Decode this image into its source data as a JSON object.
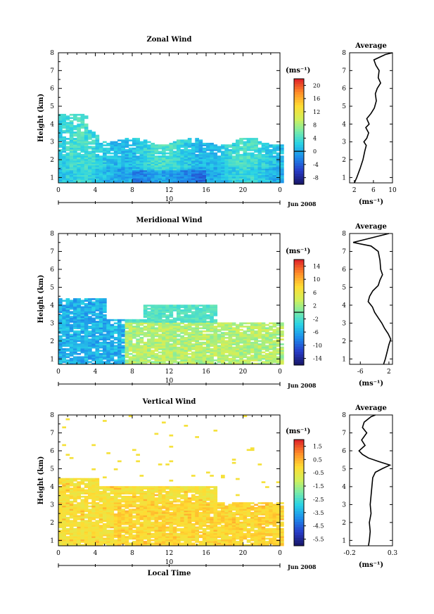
{
  "figure": {
    "colorbar_unit": "(ms⁻¹)",
    "avg_xlabel": "(ms⁻¹)",
    "date_label": "Jun 2008",
    "bottom_xlabel": "Local Time"
  },
  "chart_data": [
    {
      "type": "heatmap",
      "title": "Zonal Wind",
      "ylabel": "Height (km)",
      "xlabel": "",
      "x_ticks": [
        "0",
        "4",
        "8",
        "12",
        "16",
        "20",
        "0"
      ],
      "day_label": "10",
      "xlim": [
        0,
        24
      ],
      "y_ticks": [
        "1",
        "2",
        "3",
        "4",
        "5",
        "6",
        "7",
        "8"
      ],
      "ylim": [
        0.7,
        8
      ],
      "colorbar": {
        "ticks": [
          "20",
          "16",
          "12",
          "8",
          "4",
          "0",
          "-4",
          "-8"
        ],
        "min": -10,
        "max": 22,
        "zero_line": 0
      },
      "average": {
        "title": "Average",
        "x_ticks": [
          "2",
          "6",
          "10"
        ],
        "xlim": [
          1,
          10
        ],
        "profile": [
          [
            0.7,
            2.0
          ],
          [
            1.0,
            2.5
          ],
          [
            1.5,
            3.2
          ],
          [
            2.0,
            3.8
          ],
          [
            2.5,
            4.2
          ],
          [
            2.8,
            4.5
          ],
          [
            3.0,
            4.0
          ],
          [
            3.2,
            4.6
          ],
          [
            3.5,
            5.0
          ],
          [
            3.8,
            4.4
          ],
          [
            4.0,
            5.1
          ],
          [
            4.3,
            4.6
          ],
          [
            4.6,
            5.5
          ],
          [
            4.9,
            6.2
          ],
          [
            5.3,
            6.6
          ],
          [
            5.7,
            6.4
          ],
          [
            6.0,
            6.8
          ],
          [
            6.3,
            7.5
          ],
          [
            6.6,
            7.0
          ],
          [
            7.0,
            7.2
          ],
          [
            7.3,
            6.5
          ],
          [
            7.6,
            6.1
          ],
          [
            7.9,
            8.5
          ],
          [
            8.0,
            10.0
          ]
        ]
      }
    },
    {
      "type": "heatmap",
      "title": "Meridional Wind",
      "ylabel": "Height (km)",
      "xlabel": "",
      "x_ticks": [
        "0",
        "4",
        "8",
        "12",
        "16",
        "20",
        "0"
      ],
      "day_label": "10",
      "xlim": [
        0,
        24
      ],
      "y_ticks": [
        "1",
        "2",
        "3",
        "4",
        "5",
        "6",
        "7",
        "8"
      ],
      "ylim": [
        0.7,
        8
      ],
      "colorbar": {
        "ticks": [
          "14",
          "10",
          "6",
          "2",
          "-2",
          "-6",
          "-10",
          "-14"
        ],
        "min": -16,
        "max": 16,
        "zero_line": 0
      },
      "average": {
        "title": "Average",
        "x_ticks": [
          "-6",
          "2"
        ],
        "xlim": [
          -9,
          3
        ],
        "profile": [
          [
            0.7,
            0.5
          ],
          [
            1.0,
            1.0
          ],
          [
            1.4,
            1.5
          ],
          [
            1.8,
            2.0
          ],
          [
            2.1,
            2.5
          ],
          [
            2.4,
            1.8
          ],
          [
            2.7,
            0.8
          ],
          [
            3.0,
            0.0
          ],
          [
            3.3,
            -1.0
          ],
          [
            3.6,
            -2.0
          ],
          [
            3.9,
            -2.6
          ],
          [
            4.2,
            -3.8
          ],
          [
            4.5,
            -3.4
          ],
          [
            4.8,
            -2.5
          ],
          [
            5.1,
            -1.0
          ],
          [
            5.4,
            -0.5
          ],
          [
            5.7,
            0.2
          ],
          [
            6.0,
            -0.3
          ],
          [
            6.5,
            -0.5
          ],
          [
            7.0,
            -1.0
          ],
          [
            7.3,
            -3.0
          ],
          [
            7.5,
            -8.0
          ],
          [
            7.7,
            -4.0
          ],
          [
            8.0,
            2.0
          ]
        ]
      }
    },
    {
      "type": "heatmap",
      "title": "Vertical Wind",
      "ylabel": "Height (km)",
      "xlabel": "Local Time",
      "x_ticks": [
        "0",
        "4",
        "8",
        "12",
        "16",
        "20",
        "0"
      ],
      "day_label": "10",
      "xlim": [
        0,
        24
      ],
      "y_ticks": [
        "1",
        "2",
        "3",
        "4",
        "5",
        "6",
        "7",
        "8"
      ],
      "ylim": [
        0.7,
        8
      ],
      "colorbar": {
        "ticks": [
          "1.5",
          "0.5",
          "-0.5",
          "-1.5",
          "-2.5",
          "-3.5",
          "-4.5",
          "-5.5"
        ],
        "min": -6,
        "max": 2
      },
      "average": {
        "title": "Average",
        "x_ticks": [
          "-0.2",
          "0.3"
        ],
        "xlim": [
          -0.2,
          0.3
        ],
        "profile": [
          [
            0.7,
            0.02
          ],
          [
            1.0,
            0.03
          ],
          [
            1.5,
            0.04
          ],
          [
            2.0,
            0.03
          ],
          [
            2.5,
            0.05
          ],
          [
            3.0,
            0.04
          ],
          [
            3.5,
            0.05
          ],
          [
            4.0,
            0.06
          ],
          [
            4.5,
            0.07
          ],
          [
            4.8,
            0.1
          ],
          [
            5.0,
            0.18
          ],
          [
            5.2,
            0.27
          ],
          [
            5.4,
            0.14
          ],
          [
            5.6,
            0.02
          ],
          [
            5.8,
            -0.05
          ],
          [
            6.0,
            -0.09
          ],
          [
            6.3,
            -0.02
          ],
          [
            6.6,
            -0.06
          ],
          [
            7.0,
            0.0
          ],
          [
            7.3,
            -0.05
          ],
          [
            7.6,
            -0.03
          ],
          [
            7.9,
            0.05
          ],
          [
            8.0,
            0.1
          ]
        ]
      }
    }
  ]
}
